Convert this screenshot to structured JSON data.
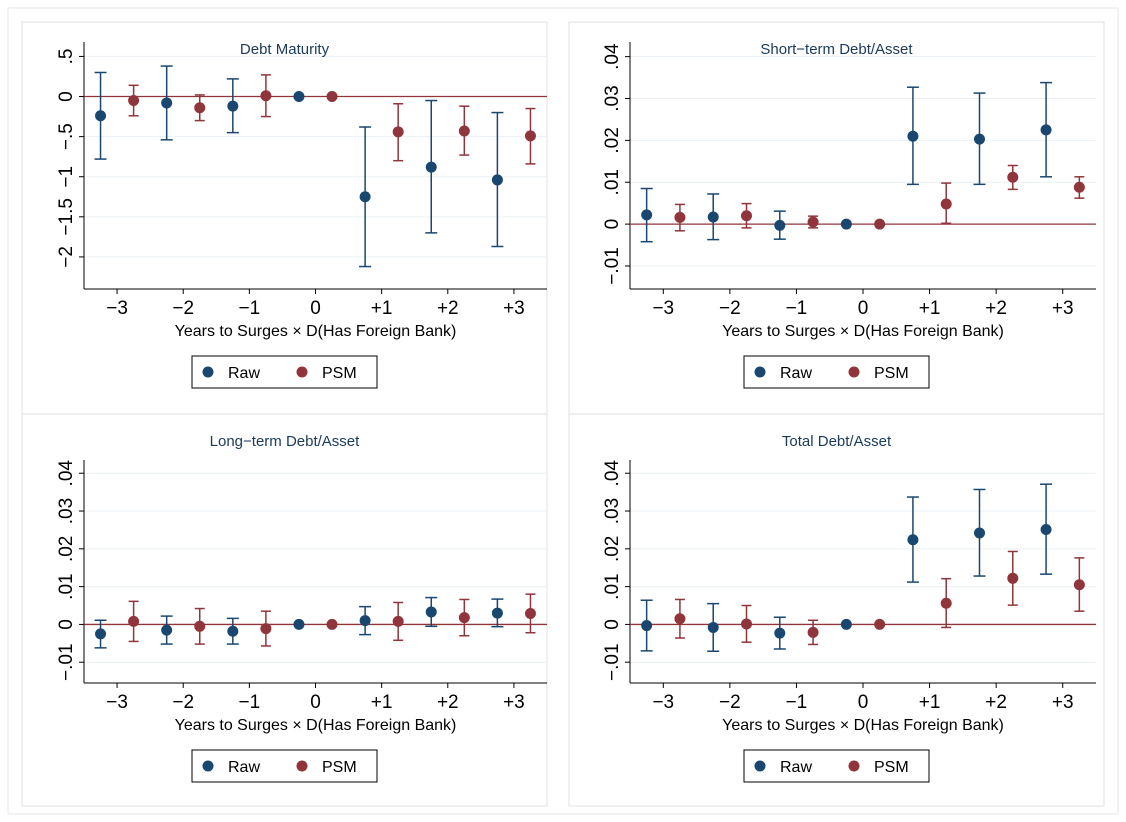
{
  "figure": {
    "background": "#ffffff",
    "panel_background": "#ffffff",
    "border_color": "#e6e6e6"
  },
  "colors": {
    "raw": "#1a476f",
    "psm": "#90353b",
    "zero_line": "#90353b",
    "grid": "#eaf0f4"
  },
  "chart_data": [
    {
      "type": "scatter",
      "title": "Debt Maturity",
      "xlabel": "Years to Surges × D(Has Foreign Bank)",
      "ylabel": "",
      "categories": [
        "−3",
        "−2",
        "−1",
        "0",
        "+1",
        "+2",
        "+3"
      ],
      "ylim": [
        -2.4,
        0.68
      ],
      "yticks": [
        0.5,
        0,
        -0.5,
        -1,
        -1.5,
        -2
      ],
      "ytick_labels": [
        ".5",
        "0",
        "−.5",
        "−1",
        "−1.5",
        "−2"
      ],
      "grid": true,
      "legend": {
        "placement": "bottom",
        "entries": [
          "Raw",
          "PSM"
        ]
      },
      "series": [
        {
          "name": "Raw",
          "values": [
            -0.24,
            -0.08,
            -0.12,
            0,
            -1.25,
            -0.88,
            -1.04
          ],
          "ci_low": [
            -0.78,
            -0.54,
            -0.45,
            0,
            -2.12,
            -1.7,
            -1.87
          ],
          "ci_high": [
            0.3,
            0.38,
            0.22,
            0,
            -0.38,
            -0.05,
            -0.2
          ]
        },
        {
          "name": "PSM",
          "values": [
            -0.05,
            -0.14,
            0.01,
            0,
            -0.44,
            -0.43,
            -0.49
          ],
          "ci_low": [
            -0.24,
            -0.3,
            -0.25,
            0,
            -0.8,
            -0.73,
            -0.84
          ],
          "ci_high": [
            0.14,
            0.02,
            0.27,
            0,
            -0.09,
            -0.12,
            -0.15
          ]
        }
      ]
    },
    {
      "type": "scatter",
      "title": "Short−term Debt/Asset",
      "xlabel": "Years to Surges × D(Has Foreign Bank)",
      "ylabel": "",
      "categories": [
        "−3",
        "−2",
        "−1",
        "0",
        "+1",
        "+2",
        "+3"
      ],
      "ylim": [
        -0.0155,
        0.0435
      ],
      "yticks": [
        0.04,
        0.03,
        0.02,
        0.01,
        0,
        -0.01
      ],
      "ytick_labels": [
        ".04",
        ".03",
        ".02",
        ".01",
        "0",
        "−.01"
      ],
      "grid": true,
      "legend": {
        "placement": "bottom",
        "entries": [
          "Raw",
          "PSM"
        ]
      },
      "series": [
        {
          "name": "Raw",
          "values": [
            0.0022,
            0.0017,
            -0.0003,
            0,
            0.021,
            0.0203,
            0.0225
          ],
          "ci_low": [
            -0.0042,
            -0.0037,
            -0.0036,
            0,
            0.0095,
            0.0095,
            0.0113
          ],
          "ci_high": [
            0.0085,
            0.0072,
            0.0031,
            0,
            0.0327,
            0.0313,
            0.0338
          ]
        },
        {
          "name": "PSM",
          "values": [
            0.0016,
            0.002,
            0.0005,
            0,
            0.0048,
            0.0112,
            0.0088
          ],
          "ci_low": [
            -0.0016,
            -0.0009,
            -0.0009,
            0,
            0.0002,
            0.0083,
            0.0062
          ],
          "ci_high": [
            0.0047,
            0.0049,
            0.0019,
            0,
            0.0098,
            0.014,
            0.0113
          ]
        }
      ]
    },
    {
      "type": "scatter",
      "title": "Long−term Debt/Asset",
      "xlabel": "Years to Surges × D(Has Foreign Bank)",
      "ylabel": "",
      "categories": [
        "−3",
        "−2",
        "−1",
        "0",
        "+1",
        "+2",
        "+3"
      ],
      "ylim": [
        -0.0155,
        0.0435
      ],
      "yticks": [
        0.04,
        0.03,
        0.02,
        0.01,
        0,
        -0.01
      ],
      "ytick_labels": [
        ".04",
        ".03",
        ".02",
        ".01",
        "0",
        "−.01"
      ],
      "grid": true,
      "legend": {
        "placement": "bottom",
        "entries": [
          "Raw",
          "PSM"
        ]
      },
      "series": [
        {
          "name": "Raw",
          "values": [
            -0.0025,
            -0.0015,
            -0.0018,
            0,
            0.001,
            0.0033,
            0.003
          ],
          "ci_low": [
            -0.0062,
            -0.0052,
            -0.0052,
            0,
            -0.0027,
            -0.0005,
            -0.0006
          ],
          "ci_high": [
            0.0011,
            0.0022,
            0.0016,
            0,
            0.0047,
            0.0071,
            0.0067
          ]
        },
        {
          "name": "PSM",
          "values": [
            0.0008,
            -0.0005,
            -0.0011,
            0,
            0.0008,
            0.0018,
            0.0029
          ],
          "ci_low": [
            -0.0045,
            -0.0052,
            -0.0057,
            0,
            -0.0042,
            -0.003,
            -0.0022
          ],
          "ci_high": [
            0.0061,
            0.0042,
            0.0035,
            0,
            0.0058,
            0.0066,
            0.008
          ]
        }
      ]
    },
    {
      "type": "scatter",
      "title": "Total Debt/Asset",
      "xlabel": "Years to Surges × D(Has Foreign Bank)",
      "ylabel": "",
      "categories": [
        "−3",
        "−2",
        "−1",
        "0",
        "+1",
        "+2",
        "+3"
      ],
      "ylim": [
        -0.0155,
        0.0435
      ],
      "yticks": [
        0.04,
        0.03,
        0.02,
        0.01,
        0,
        -0.01
      ],
      "ytick_labels": [
        ".04",
        ".03",
        ".02",
        ".01",
        "0",
        "−.01"
      ],
      "grid": true,
      "legend": {
        "placement": "bottom",
        "entries": [
          "Raw",
          "PSM"
        ]
      },
      "series": [
        {
          "name": "Raw",
          "values": [
            -0.0003,
            -0.0008,
            -0.0023,
            0,
            0.0224,
            0.0242,
            0.0251
          ],
          "ci_low": [
            -0.007,
            -0.0071,
            -0.0065,
            0,
            0.0112,
            0.0128,
            0.0133
          ],
          "ci_high": [
            0.0064,
            0.0055,
            0.0019,
            0,
            0.0337,
            0.0357,
            0.0371
          ]
        },
        {
          "name": "PSM",
          "values": [
            0.0015,
            0.0001,
            -0.0021,
            0,
            0.0056,
            0.0122,
            0.0105
          ],
          "ci_low": [
            -0.0036,
            -0.0047,
            -0.0053,
            0,
            -0.0008,
            0.0051,
            0.0035
          ],
          "ci_high": [
            0.0066,
            0.005,
            0.0011,
            0,
            0.0121,
            0.0193,
            0.0176
          ]
        }
      ]
    }
  ]
}
